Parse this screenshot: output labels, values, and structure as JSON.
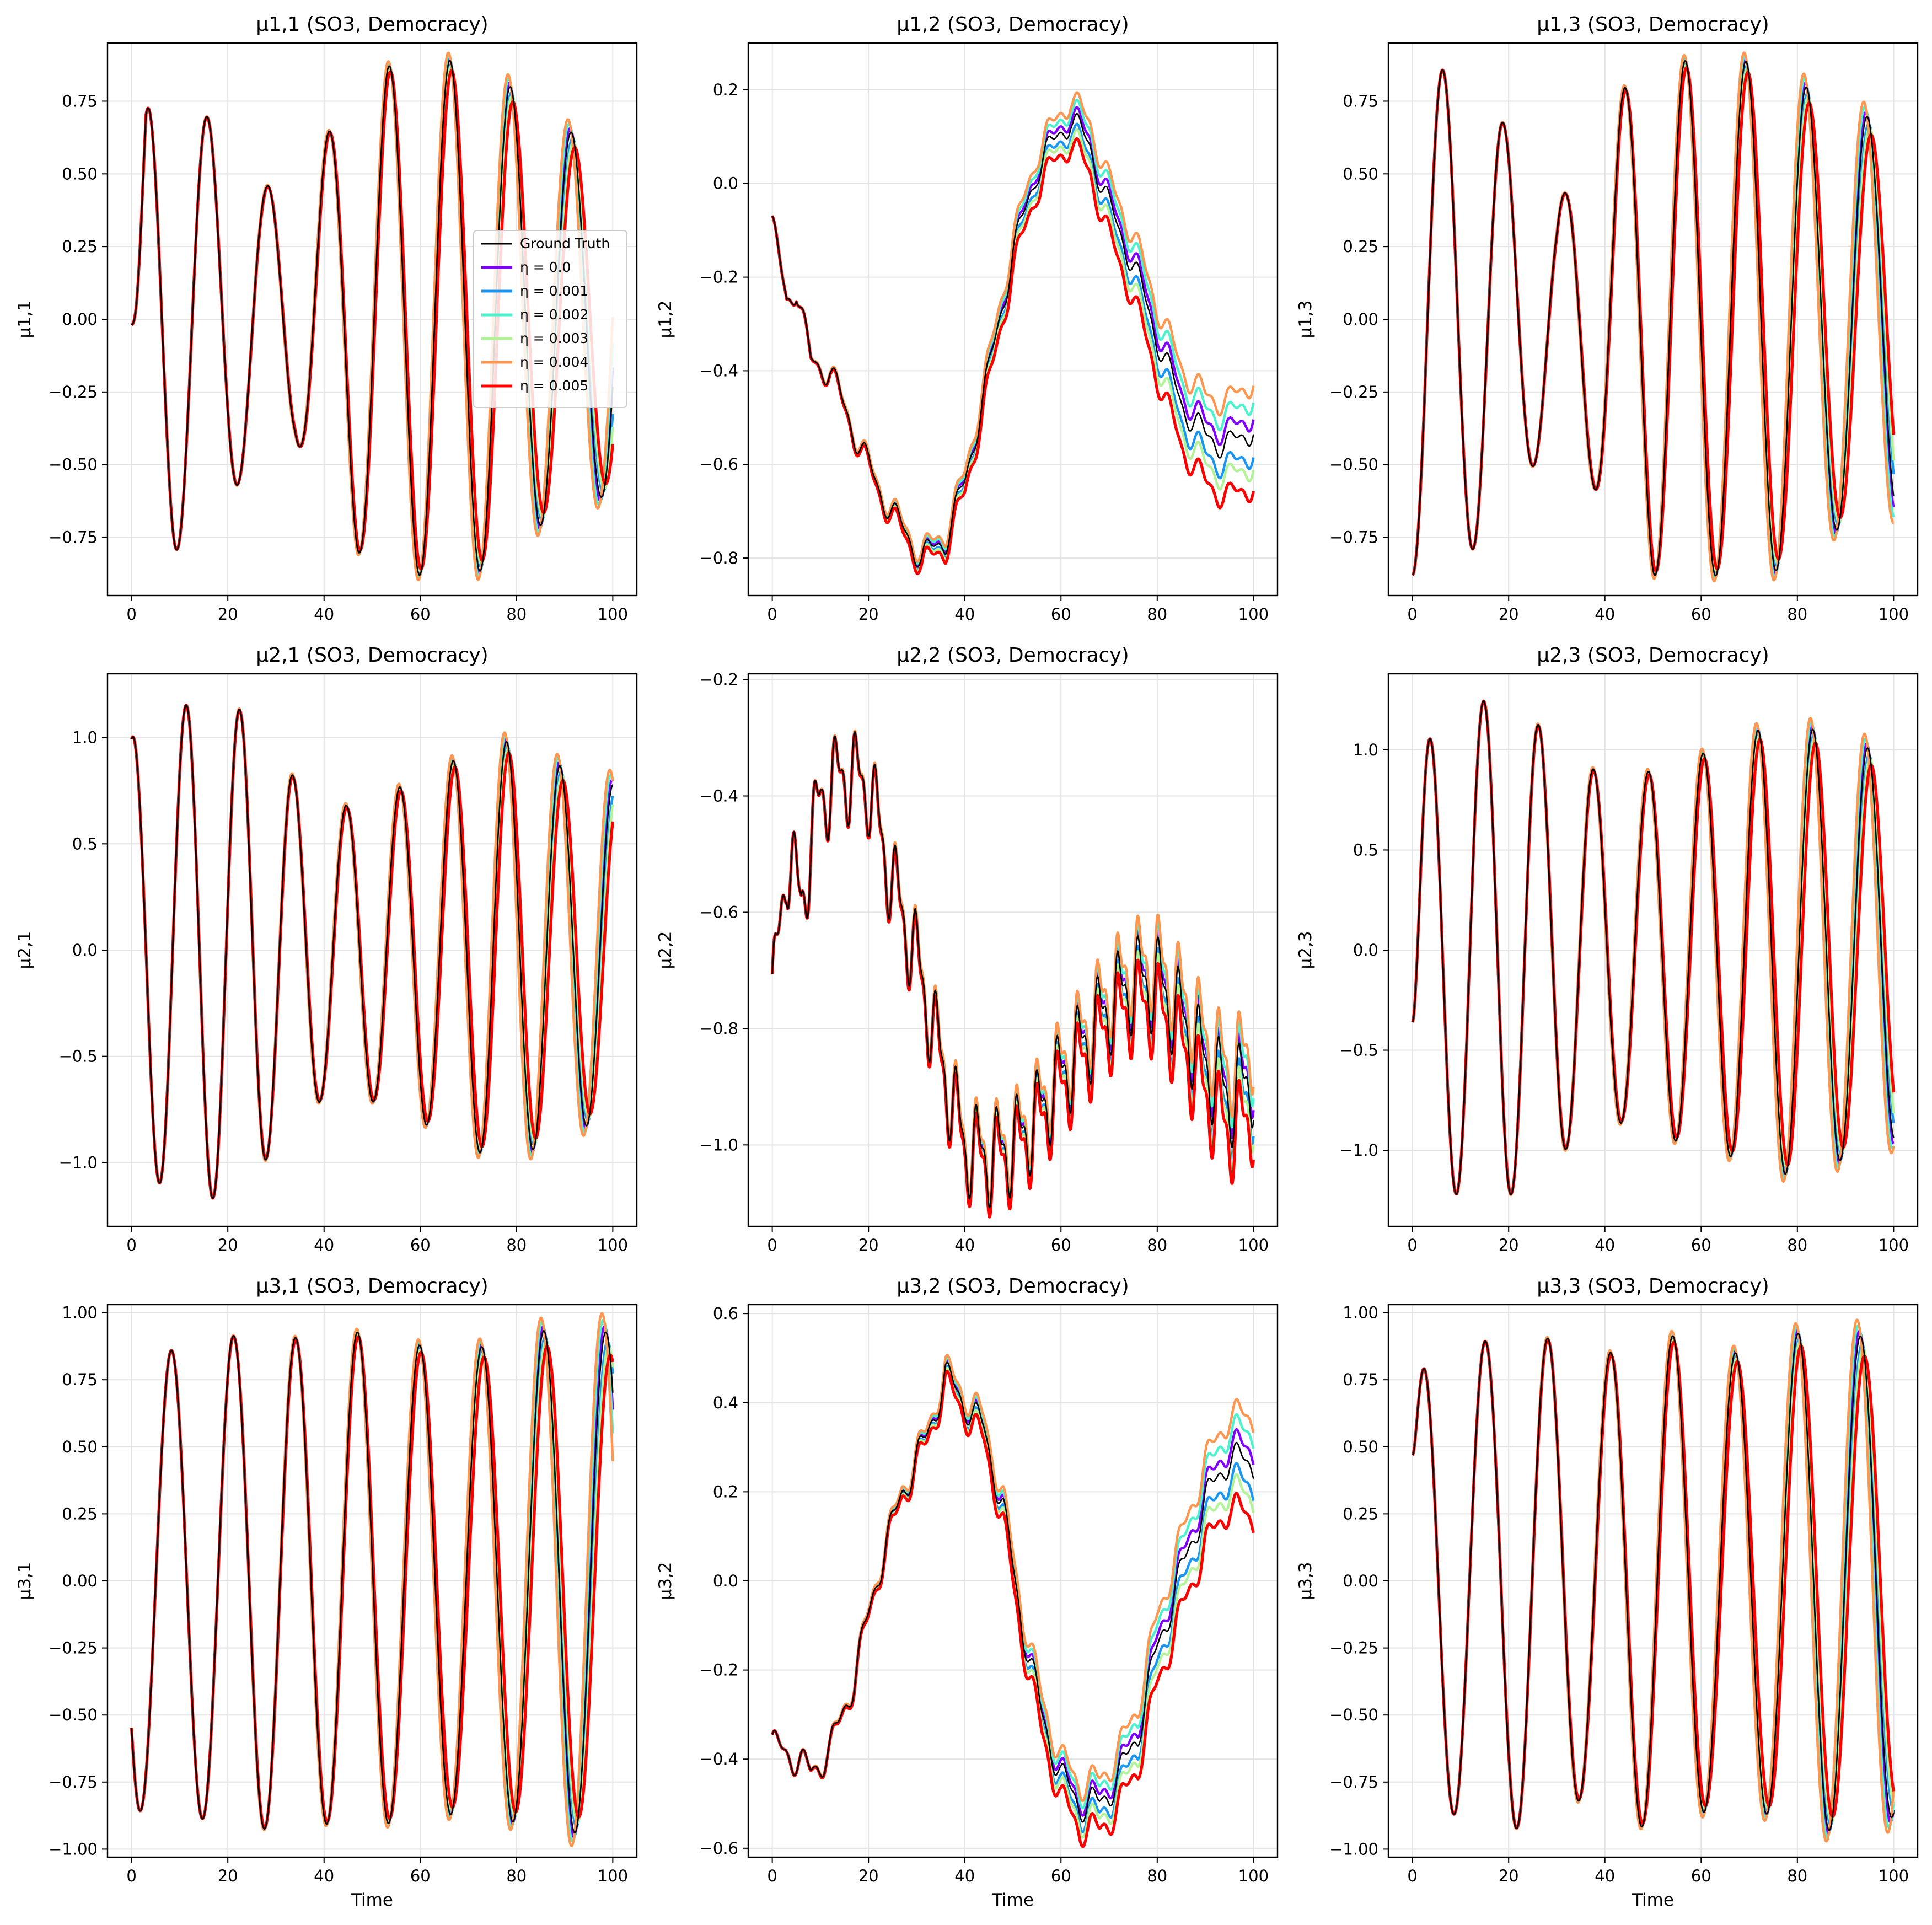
{
  "figure": {
    "legend": {
      "placement": "center-right of first panel",
      "entries": [
        {
          "label": "Ground Truth",
          "color": "#000000"
        },
        {
          "label": "η = 0.0",
          "color": "#8000ff"
        },
        {
          "label": "η = 0.001",
          "color": "#1996f3"
        },
        {
          "label": "η = 0.002",
          "color": "#4cf2ce"
        },
        {
          "label": "η = 0.003",
          "color": "#b2f396"
        },
        {
          "label": "η = 0.004",
          "color": "#ff964f"
        },
        {
          "label": "η = 0.005",
          "color": "#ff0000"
        }
      ]
    }
  },
  "chart_data": [
    {
      "type": "line",
      "title": "μ1,1 (SO3, Democracy)",
      "ylabel": "μ1,1",
      "xlabel": "",
      "xlim": [
        -5,
        105
      ],
      "ylim": [
        -0.95,
        0.95
      ],
      "xticks": [
        0,
        20,
        40,
        60,
        80,
        100
      ],
      "xtick_labels": [
        "0",
        "20",
        "40",
        "60",
        "80",
        "100"
      ],
      "yticks": [
        -0.75,
        -0.5,
        -0.25,
        0,
        0.25,
        0.5,
        0.75
      ],
      "ytick_labels": [
        "−0.75",
        "−0.50",
        "−0.25",
        "0.00",
        "0.25",
        "0.50",
        "0.75"
      ],
      "grid": true,
      "legend": true,
      "generator": {
        "kind": "osc",
        "period": 12.6,
        "phase": 0,
        "amp_keys": [
          [
            0,
            0
          ],
          [
            3,
            0.82
          ],
          [
            9,
            0.8
          ],
          [
            15,
            0.71
          ],
          [
            21,
            0.59
          ],
          [
            27,
            0.47
          ],
          [
            34,
            0.41
          ],
          [
            40,
            0.62
          ],
          [
            47,
            0.8
          ],
          [
            53,
            0.87
          ],
          [
            60,
            0.88
          ],
          [
            66,
            0.89
          ],
          [
            72,
            0.87
          ],
          [
            78,
            0.81
          ],
          [
            84,
            0.72
          ],
          [
            90,
            0.65
          ],
          [
            96,
            0.62
          ],
          [
            100,
            0.6
          ]
        ],
        "drift": 0.005,
        "start": -0.02,
        "ramp": 1.5
      }
    },
    {
      "type": "line",
      "title": "μ1,2 (SO3, Democracy)",
      "ylabel": "μ1,2",
      "xlabel": "",
      "xlim": [
        -5,
        105
      ],
      "ylim": [
        -0.88,
        0.3
      ],
      "xticks": [
        0,
        20,
        40,
        60,
        80,
        100
      ],
      "xtick_labels": [
        "0",
        "20",
        "40",
        "60",
        "80",
        "100"
      ],
      "yticks": [
        -0.8,
        -0.6,
        -0.4,
        -0.2,
        0,
        0.2
      ],
      "ytick_labels": [
        "−0.8",
        "−0.6",
        "−0.4",
        "−0.2",
        "0.0",
        "0.2"
      ],
      "grid": true,
      "legend": false,
      "generator": {
        "kind": "trend",
        "base_keys": [
          [
            0,
            -0.09
          ],
          [
            3,
            -0.25
          ],
          [
            5,
            -0.22
          ],
          [
            8,
            -0.38
          ],
          [
            12,
            -0.4
          ],
          [
            17,
            -0.53
          ],
          [
            22,
            -0.65
          ],
          [
            26,
            -0.72
          ],
          [
            31,
            -0.8
          ],
          [
            36,
            -0.76
          ],
          [
            40,
            -0.64
          ],
          [
            45,
            -0.4
          ],
          [
            50,
            -0.15
          ],
          [
            55,
            0.03
          ],
          [
            58,
            0.08
          ],
          [
            62,
            0.14
          ],
          [
            66,
            0.08
          ],
          [
            70,
            -0.05
          ],
          [
            75,
            -0.17
          ],
          [
            80,
            -0.33
          ],
          [
            85,
            -0.47
          ],
          [
            90,
            -0.54
          ],
          [
            95,
            -0.56
          ],
          [
            100,
            -0.52
          ]
        ],
        "wiggle_amp": 0.025,
        "wiggle_period": 6.3,
        "drift": 0.09
      }
    },
    {
      "type": "line",
      "title": "μ1,3 (SO3, Democracy)",
      "ylabel": "μ1,3",
      "xlabel": "",
      "xlim": [
        -5,
        105
      ],
      "ylim": [
        -0.95,
        0.95
      ],
      "xticks": [
        0,
        20,
        40,
        60,
        80,
        100
      ],
      "xtick_labels": [
        "0",
        "20",
        "40",
        "60",
        "80",
        "100"
      ],
      "yticks": [
        -0.75,
        -0.5,
        -0.25,
        0,
        0.25,
        0.5,
        0.75
      ],
      "ytick_labels": [
        "−0.75",
        "−0.50",
        "−0.25",
        "0.00",
        "0.25",
        "0.50",
        "0.75"
      ],
      "grid": true,
      "legend": false,
      "generator": {
        "kind": "osc",
        "period": 12.6,
        "phase": -1.5708,
        "amp_keys": [
          [
            0,
            0.88
          ],
          [
            6,
            0.86
          ],
          [
            12,
            0.8
          ],
          [
            18,
            0.7
          ],
          [
            24,
            0.53
          ],
          [
            30,
            0.4
          ],
          [
            37,
            0.55
          ],
          [
            43,
            0.78
          ],
          [
            50,
            0.88
          ],
          [
            56,
            0.89
          ],
          [
            62,
            0.88
          ],
          [
            68,
            0.89
          ],
          [
            75,
            0.87
          ],
          [
            81,
            0.81
          ],
          [
            87,
            0.73
          ],
          [
            94,
            0.7
          ],
          [
            100,
            0.66
          ]
        ],
        "drift": 0.005
      }
    },
    {
      "type": "line",
      "title": "μ2,1 (SO3, Democracy)",
      "ylabel": "μ2,1",
      "xlabel": "",
      "xlim": [
        -5,
        105
      ],
      "ylim": [
        -1.3,
        1.3
      ],
      "xticks": [
        0,
        20,
        40,
        60,
        80,
        100
      ],
      "xtick_labels": [
        "0",
        "20",
        "40",
        "60",
        "80",
        "100"
      ],
      "yticks": [
        -1.0,
        -0.5,
        0,
        0.5,
        1.0
      ],
      "ytick_labels": [
        "−1.0",
        "−0.5",
        "0.0",
        "0.5",
        "1.0"
      ],
      "grid": true,
      "legend": false,
      "generator": {
        "kind": "osc",
        "period": 11.1,
        "phase": 1.45,
        "amp_keys": [
          [
            0,
            1.0
          ],
          [
            6,
            1.1
          ],
          [
            12,
            1.16
          ],
          [
            18,
            1.17
          ],
          [
            24,
            1.12
          ],
          [
            29,
            0.95
          ],
          [
            35,
            0.78
          ],
          [
            40,
            0.7
          ],
          [
            45,
            0.68
          ],
          [
            51,
            0.72
          ],
          [
            57,
            0.78
          ],
          [
            63,
            0.84
          ],
          [
            69,
            0.92
          ],
          [
            75,
            0.98
          ],
          [
            81,
            0.98
          ],
          [
            87,
            0.88
          ],
          [
            93,
            0.84
          ],
          [
            100,
            0.78
          ]
        ],
        "drift": 0.008
      }
    },
    {
      "type": "line",
      "title": "μ2,2 (SO3, Democracy)",
      "ylabel": "μ2,2",
      "xlabel": "",
      "xlim": [
        -5,
        105
      ],
      "ylim": [
        -1.14,
        -0.19
      ],
      "xticks": [
        0,
        20,
        40,
        60,
        80,
        100
      ],
      "xtick_labels": [
        "0",
        "20",
        "40",
        "60",
        "80",
        "100"
      ],
      "yticks": [
        -1.0,
        -0.8,
        -0.6,
        -0.4,
        -0.2
      ],
      "ytick_labels": [
        "−1.0",
        "−0.8",
        "−0.6",
        "−0.4",
        "−0.2"
      ],
      "grid": true,
      "legend": false,
      "generator": {
        "kind": "trend",
        "base_keys": [
          [
            0,
            -0.76
          ],
          [
            3,
            -0.5
          ],
          [
            6,
            -0.58
          ],
          [
            10,
            -0.4
          ],
          [
            15,
            -0.36
          ],
          [
            20,
            -0.38
          ],
          [
            25,
            -0.55
          ],
          [
            30,
            -0.68
          ],
          [
            35,
            -0.85
          ],
          [
            40,
            -1.0
          ],
          [
            45,
            -1.02
          ],
          [
            50,
            -1.0
          ],
          [
            55,
            -0.95
          ],
          [
            60,
            -0.88
          ],
          [
            65,
            -0.82
          ],
          [
            70,
            -0.76
          ],
          [
            75,
            -0.72
          ],
          [
            80,
            -0.72
          ],
          [
            85,
            -0.78
          ],
          [
            90,
            -0.86
          ],
          [
            95,
            -0.92
          ],
          [
            100,
            -0.88
          ]
        ],
        "wiggle_amp": 0.065,
        "wiggle_period": 4.2,
        "drift": 0.05
      }
    },
    {
      "type": "line",
      "title": "μ2,3 (SO3, Democracy)",
      "ylabel": "μ2,3",
      "xlabel": "",
      "xlim": [
        -5,
        105
      ],
      "ylim": [
        -1.38,
        1.38
      ],
      "xticks": [
        0,
        20,
        40,
        60,
        80,
        100
      ],
      "xtick_labels": [
        "0",
        "20",
        "40",
        "60",
        "80",
        "100"
      ],
      "yticks": [
        -1.0,
        -0.5,
        0,
        0.5,
        1.0
      ],
      "ytick_labels": [
        "−1.0",
        "−0.5",
        "0.0",
        "0.5",
        "1.0"
      ],
      "grid": true,
      "legend": false,
      "generator": {
        "kind": "osc",
        "period": 11.4,
        "phase": -0.3,
        "amp_keys": [
          [
            0,
            1.15
          ],
          [
            6,
            1.2
          ],
          [
            12,
            1.24
          ],
          [
            18,
            1.25
          ],
          [
            24,
            1.18
          ],
          [
            30,
            1.03
          ],
          [
            36,
            0.92
          ],
          [
            42,
            0.86
          ],
          [
            48,
            0.88
          ],
          [
            54,
            0.95
          ],
          [
            60,
            0.98
          ],
          [
            66,
            1.03
          ],
          [
            72,
            1.1
          ],
          [
            78,
            1.12
          ],
          [
            84,
            1.1
          ],
          [
            90,
            1.04
          ],
          [
            96,
            1.0
          ],
          [
            100,
            0.95
          ]
        ],
        "drift": 0.006,
        "start": -0.36,
        "ramp": 1.4
      }
    },
    {
      "type": "line",
      "title": "μ3,1 (SO3, Democracy)",
      "ylabel": "μ3,1",
      "xlabel": "Time",
      "xlim": [
        -5,
        105
      ],
      "ylim": [
        -1.03,
        1.03
      ],
      "xticks": [
        0,
        20,
        40,
        60,
        80,
        100
      ],
      "xtick_labels": [
        "0",
        "20",
        "40",
        "60",
        "80",
        "100"
      ],
      "yticks": [
        -1.0,
        -0.75,
        -0.5,
        -0.25,
        0,
        0.25,
        0.5,
        0.75,
        1.0
      ],
      "ytick_labels": [
        "−1.00",
        "−0.75",
        "−0.50",
        "−0.25",
        "0.00",
        "0.25",
        "0.50",
        "0.75",
        "1.00"
      ],
      "grid": true,
      "legend": false,
      "generator": {
        "kind": "osc",
        "period": 12.9,
        "phase": -2.45,
        "amp_keys": [
          [
            0,
            0.86
          ],
          [
            6,
            0.85
          ],
          [
            13,
            0.88
          ],
          [
            20,
            0.91
          ],
          [
            26,
            0.93
          ],
          [
            32,
            0.91
          ],
          [
            39,
            0.9
          ],
          [
            46,
            0.93
          ],
          [
            52,
            0.91
          ],
          [
            59,
            0.88
          ],
          [
            65,
            0.87
          ],
          [
            72,
            0.87
          ],
          [
            78,
            0.89
          ],
          [
            84,
            0.93
          ],
          [
            90,
            0.94
          ],
          [
            96,
            0.94
          ],
          [
            100,
            0.92
          ]
        ],
        "drift": 0.005
      }
    },
    {
      "type": "line",
      "title": "μ3,2 (SO3, Democracy)",
      "ylabel": "μ3,2",
      "xlabel": "Time",
      "xlim": [
        -5,
        105
      ],
      "ylim": [
        -0.62,
        0.62
      ],
      "xticks": [
        0,
        20,
        40,
        60,
        80,
        100
      ],
      "xtick_labels": [
        "0",
        "20",
        "40",
        "60",
        "80",
        "100"
      ],
      "yticks": [
        -0.6,
        -0.4,
        -0.2,
        0,
        0.2,
        0.4,
        0.6
      ],
      "ytick_labels": [
        "−0.6",
        "−0.4",
        "−0.2",
        "0.0",
        "0.2",
        "0.4",
        "0.6"
      ],
      "grid": true,
      "legend": false,
      "generator": {
        "kind": "trend",
        "base_keys": [
          [
            0,
            -0.37
          ],
          [
            4,
            -0.39
          ],
          [
            8,
            -0.43
          ],
          [
            12,
            -0.38
          ],
          [
            17,
            -0.22
          ],
          [
            22,
            0.02
          ],
          [
            27,
            0.2
          ],
          [
            32,
            0.32
          ],
          [
            36,
            0.46
          ],
          [
            40,
            0.4
          ],
          [
            44,
            0.34
          ],
          [
            48,
            0.16
          ],
          [
            52,
            -0.1
          ],
          [
            56,
            -0.3
          ],
          [
            60,
            -0.44
          ],
          [
            64,
            -0.5
          ],
          [
            68,
            -0.5
          ],
          [
            72,
            -0.44
          ],
          [
            76,
            -0.34
          ],
          [
            80,
            -0.15
          ],
          [
            85,
            0.02
          ],
          [
            90,
            0.18
          ],
          [
            95,
            0.28
          ],
          [
            100,
            0.26
          ]
        ],
        "wiggle_amp": 0.03,
        "wiggle_period": 6.0,
        "drift": 0.09
      }
    },
    {
      "type": "line",
      "title": "μ3,3 (SO3, Democracy)",
      "ylabel": "μ3,3",
      "xlabel": "Time",
      "xlim": [
        -5,
        105
      ],
      "ylim": [
        -1.03,
        1.03
      ],
      "xticks": [
        0,
        20,
        40,
        60,
        80,
        100
      ],
      "xtick_labels": [
        "0",
        "20",
        "40",
        "60",
        "80",
        "100"
      ],
      "yticks": [
        -1.0,
        -0.75,
        -0.5,
        -0.25,
        0,
        0.25,
        0.5,
        0.75,
        1.0
      ],
      "ytick_labels": [
        "−1.00",
        "−0.75",
        "−0.50",
        "−0.25",
        "0.00",
        "0.25",
        "0.50",
        "0.75",
        "1.00"
      ],
      "grid": true,
      "legend": false,
      "generator": {
        "kind": "osc",
        "period": 13.0,
        "phase": 0.55,
        "amp_keys": [
          [
            0,
            0.86
          ],
          [
            5,
            0.86
          ],
          [
            11,
            0.88
          ],
          [
            17,
            0.9
          ],
          [
            23,
            0.93
          ],
          [
            29,
            0.9
          ],
          [
            36,
            0.8
          ],
          [
            42,
            0.86
          ],
          [
            49,
            0.93
          ],
          [
            55,
            0.91
          ],
          [
            62,
            0.85
          ],
          [
            68,
            0.85
          ],
          [
            74,
            0.87
          ],
          [
            81,
            0.93
          ],
          [
            87,
            0.93
          ],
          [
            94,
            0.91
          ],
          [
            100,
            0.88
          ]
        ],
        "drift": 0.006,
        "start": 0.47,
        "ramp": 1.3
      }
    }
  ]
}
